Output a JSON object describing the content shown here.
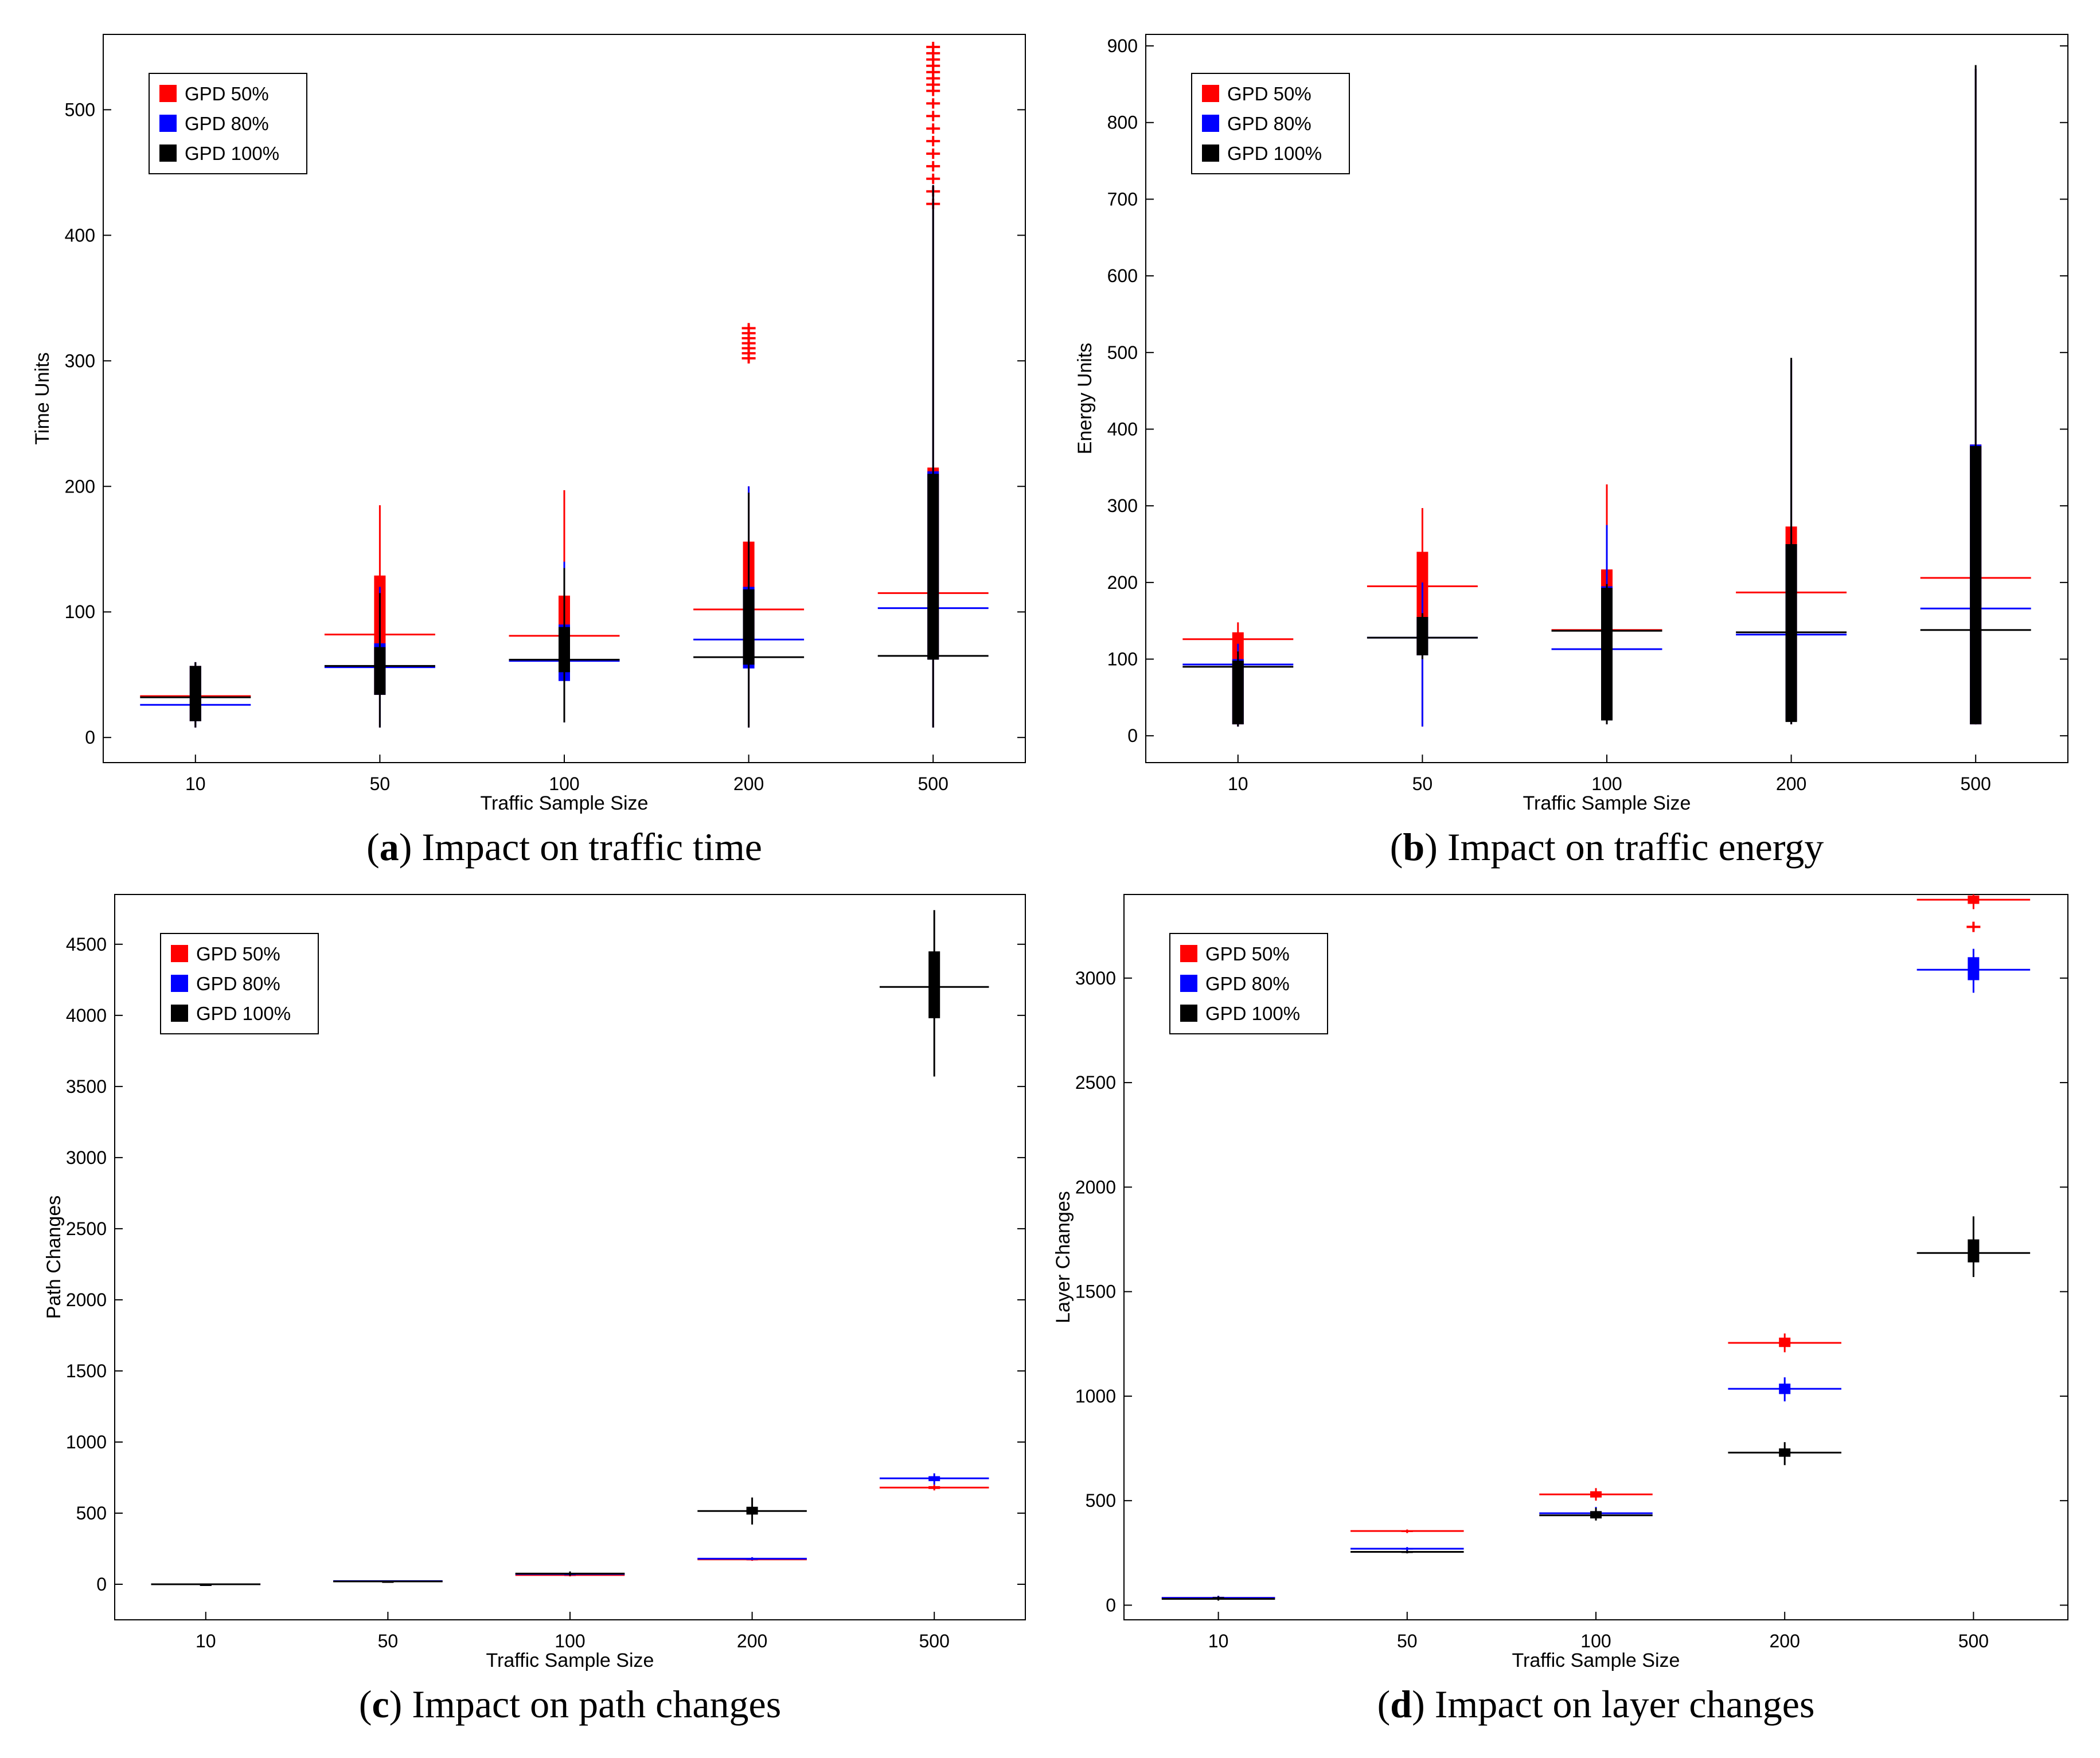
{
  "colors": {
    "gpd50": "#ff0000",
    "gpd80": "#0000ff",
    "gpd100": "#000000"
  },
  "legend": [
    "GPD 50%",
    "GPD 80%",
    "GPD 100%"
  ],
  "chart_data": [
    {
      "id": "a",
      "type": "box",
      "caption_label": "a",
      "caption_text": "Impact on traffic time",
      "xlabel": "Traffic Sample Size",
      "ylabel": "Time Units",
      "categories": [
        "10",
        "50",
        "100",
        "200",
        "500"
      ],
      "ylim": [
        -20,
        560
      ],
      "yticks": [
        0,
        100,
        200,
        300,
        400,
        500
      ],
      "legend_position": "top-left",
      "series": [
        {
          "name": "GPD 50%",
          "color": "#ff0000",
          "median": [
            33,
            82,
            81,
            102,
            115
          ],
          "box": [
            [
              13,
              57
            ],
            [
              34,
              129
            ],
            [
              50,
              113
            ],
            [
              57,
              156
            ],
            [
              62,
              215
            ]
          ],
          "whisker": [
            [
              8,
              60
            ],
            [
              8,
              185
            ],
            [
              12,
              197
            ],
            [
              8,
              200
            ],
            [
              8,
              435
            ]
          ],
          "outliers": [
            [],
            [],
            [],
            [
              302,
              306,
              310,
              314,
              318,
              322,
              326
            ],
            [
              425,
              435,
              445,
              455,
              465,
              475,
              485,
              495,
              505,
              515,
              520,
              525,
              530,
              535,
              540,
              545,
              550
            ]
          ]
        },
        {
          "name": "GPD 80%",
          "color": "#0000ff",
          "median": [
            26,
            56,
            61,
            78,
            103
          ],
          "box": [
            [
              13,
              57
            ],
            [
              34,
              75
            ],
            [
              45,
              90
            ],
            [
              55,
              120
            ],
            [
              62,
              212
            ]
          ],
          "whisker": [
            [
              8,
              60
            ],
            [
              8,
              120
            ],
            [
              12,
              140
            ],
            [
              8,
              200
            ],
            [
              8,
              440
            ]
          ],
          "outliers": [
            [],
            [],
            [],
            [],
            []
          ]
        },
        {
          "name": "GPD 100%",
          "color": "#000000",
          "median": [
            32,
            57,
            62,
            64,
            65
          ],
          "box": [
            [
              13,
              57
            ],
            [
              34,
              72
            ],
            [
              52,
              88
            ],
            [
              58,
              118
            ],
            [
              62,
              210
            ]
          ],
          "whisker": [
            [
              8,
              60
            ],
            [
              8,
              115
            ],
            [
              12,
              135
            ],
            [
              8,
              195
            ],
            [
              8,
              440
            ]
          ],
          "outliers": [
            [],
            [],
            [],
            [],
            []
          ]
        }
      ]
    },
    {
      "id": "b",
      "type": "box",
      "caption_label": "b",
      "caption_text": "Impact on traffic energy",
      "xlabel": "Traffic Sample Size",
      "ylabel": "Energy Units",
      "categories": [
        "10",
        "50",
        "100",
        "200",
        "500"
      ],
      "ylim": [
        -35,
        915
      ],
      "yticks": [
        0,
        100,
        200,
        300,
        400,
        500,
        600,
        700,
        800,
        900
      ],
      "legend_position": "top-left",
      "series": [
        {
          "name": "GPD 50%",
          "color": "#ff0000",
          "median": [
            126,
            195,
            138,
            187,
            206
          ],
          "box": [
            [
              15,
              135
            ],
            [
              105,
              240
            ],
            [
              20,
              217
            ],
            [
              20,
              273
            ],
            [
              15,
              380
            ]
          ],
          "whisker": [
            [
              12,
              148
            ],
            [
              12,
              297
            ],
            [
              15,
              328
            ],
            [
              15,
              490
            ],
            [
              15,
              870
            ]
          ],
          "outliers": [
            [],
            [],
            [],
            [],
            []
          ]
        },
        {
          "name": "GPD 80%",
          "color": "#0000ff",
          "median": [
            93,
            128,
            113,
            132,
            166
          ],
          "box": [
            [
              15,
              100
            ],
            [
              105,
              155
            ],
            [
              20,
              195
            ],
            [
              20,
              250
            ],
            [
              15,
              380
            ]
          ],
          "whisker": [
            [
              12,
              120
            ],
            [
              12,
              200
            ],
            [
              15,
              275
            ],
            [
              15,
              490
            ],
            [
              15,
              870
            ]
          ],
          "outliers": [
            [],
            [],
            [],
            [],
            []
          ]
        },
        {
          "name": "GPD 100%",
          "color": "#000000",
          "median": [
            90,
            128,
            137,
            135,
            138
          ],
          "box": [
            [
              15,
              98
            ],
            [
              105,
              155
            ],
            [
              20,
              193
            ],
            [
              18,
              250
            ],
            [
              15,
              378
            ]
          ],
          "whisker": [
            [
              12,
              110
            ],
            [
              100,
              160
            ],
            [
              15,
              198
            ],
            [
              15,
              493
            ],
            [
              15,
              875
            ]
          ],
          "outliers": [
            [],
            [],
            [],
            [],
            []
          ]
        }
      ]
    },
    {
      "id": "c",
      "type": "box",
      "caption_label": "c",
      "caption_text": "Impact on path changes",
      "xlabel": "Traffic Sample Size",
      "ylabel": "Path Changes",
      "categories": [
        "10",
        "50",
        "100",
        "200",
        "500"
      ],
      "ylim": [
        -250,
        4850
      ],
      "yticks": [
        0,
        500,
        1000,
        1500,
        2000,
        2500,
        3000,
        3500,
        4000,
        4500
      ],
      "legend_position": "top-left",
      "series": [
        {
          "name": "GPD 50%",
          "color": "#ff0000",
          "median": [
            0,
            20,
            65,
            175,
            680
          ],
          "box": [
            [
              0,
              0
            ],
            [
              18,
              22
            ],
            [
              62,
              70
            ],
            [
              170,
              180
            ],
            [
              670,
              690
            ]
          ],
          "whisker": [
            [
              0,
              0
            ],
            [
              15,
              25
            ],
            [
              55,
              75
            ],
            [
              165,
              190
            ],
            [
              660,
              700
            ]
          ],
          "outliers": [
            [],
            [],
            [],
            [],
            []
          ]
        },
        {
          "name": "GPD 80%",
          "color": "#0000ff",
          "median": [
            0,
            22,
            72,
            180,
            745
          ],
          "box": [
            [
              0,
              0
            ],
            [
              20,
              24
            ],
            [
              68,
              76
            ],
            [
              176,
              184
            ],
            [
              725,
              760
            ]
          ],
          "whisker": [
            [
              0,
              0
            ],
            [
              18,
              26
            ],
            [
              60,
              82
            ],
            [
              170,
              190
            ],
            [
              700,
              780
            ]
          ],
          "outliers": [
            [],
            [],
            [],
            [],
            []
          ]
        },
        {
          "name": "GPD 100%",
          "color": "#000000",
          "median": [
            0,
            20,
            75,
            515,
            4200
          ],
          "box": [
            [
              0,
              0
            ],
            [
              18,
              22
            ],
            [
              70,
              80
            ],
            [
              490,
              545
            ],
            [
              3980,
              4450
            ]
          ],
          "whisker": [
            [
              0,
              0
            ],
            [
              15,
              25
            ],
            [
              60,
              90
            ],
            [
              420,
              610
            ],
            [
              3570,
              4740
            ]
          ],
          "outliers": [
            [],
            [],
            [],
            [],
            []
          ]
        }
      ]
    },
    {
      "id": "d",
      "type": "box",
      "caption_label": "d",
      "caption_text": "Impact on layer changes",
      "xlabel": "Traffic Sample Size",
      "ylabel": "Layer Changes",
      "categories": [
        "10",
        "50",
        "100",
        "200",
        "500"
      ],
      "ylim": [
        -70,
        3400
      ],
      "yticks": [
        0,
        500,
        1000,
        1500,
        2000,
        2500,
        3000
      ],
      "legend_position": "top-left",
      "series": [
        {
          "name": "GPD 50%",
          "color": "#ff0000",
          "median": [
            35,
            355,
            530,
            1255,
            3375
          ],
          "box": [
            [
              30,
              40
            ],
            [
              350,
              358
            ],
            [
              515,
              545
            ],
            [
              1235,
              1280
            ],
            [
              3355,
              3395
            ]
          ],
          "whisker": [
            [
              25,
              45
            ],
            [
              345,
              362
            ],
            [
              500,
              560
            ],
            [
              1210,
              1300
            ],
            [
              3330,
              3400
            ]
          ],
          "outliers": [
            [],
            [],
            [],
            [],
            [
              3245
            ]
          ]
        },
        {
          "name": "GPD 80%",
          "color": "#0000ff",
          "median": [
            35,
            270,
            440,
            1035,
            3040
          ],
          "box": [
            [
              30,
              40
            ],
            [
              266,
              274
            ],
            [
              425,
              450
            ],
            [
              1010,
              1060
            ],
            [
              2990,
              3100
            ]
          ],
          "whisker": [
            [
              25,
              45
            ],
            [
              262,
              278
            ],
            [
              410,
              470
            ],
            [
              975,
              1090
            ],
            [
              2930,
              3140
            ]
          ],
          "outliers": [
            [],
            [],
            [],
            [],
            []
          ]
        },
        {
          "name": "GPD 100%",
          "color": "#000000",
          "median": [
            30,
            255,
            430,
            730,
            1685
          ],
          "box": [
            [
              28,
              38
            ],
            [
              252,
              258
            ],
            [
              415,
              450
            ],
            [
              710,
              750
            ],
            [
              1640,
              1750
            ]
          ],
          "whisker": [
            [
              22,
              42
            ],
            [
              248,
              262
            ],
            [
              405,
              465
            ],
            [
              670,
              780
            ],
            [
              1570,
              1860
            ]
          ],
          "outliers": [
            [],
            [],
            [],
            [],
            []
          ]
        }
      ]
    }
  ]
}
